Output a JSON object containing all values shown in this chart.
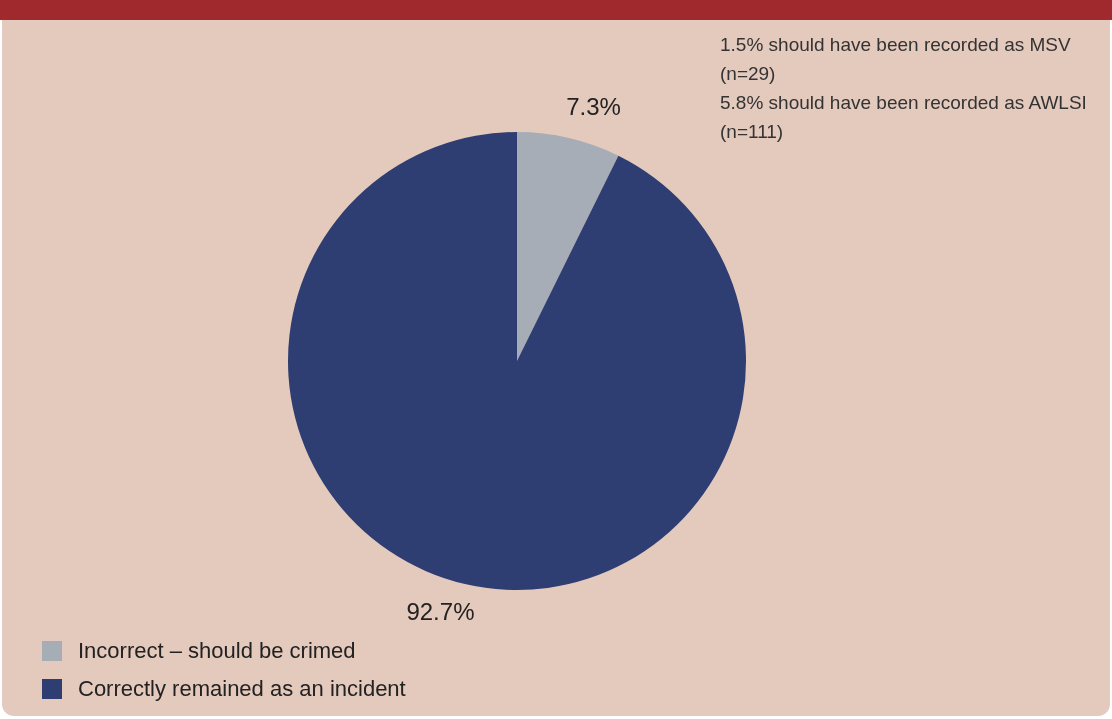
{
  "chart_data": {
    "type": "pie",
    "categories": [
      "Incorrect – should be crimed",
      "Correctly remained as an incident"
    ],
    "values": [
      7.3,
      92.7
    ],
    "colors": [
      "#a6adb6",
      "#2e3d72"
    ],
    "value_labels": [
      "7.3%",
      "92.7%"
    ],
    "legend": "bottom left",
    "annotations": [
      "1.5% should have been recorded as MSV (n=29)",
      "5.8% should have been recorded as AWLSI (n=111)"
    ]
  }
}
